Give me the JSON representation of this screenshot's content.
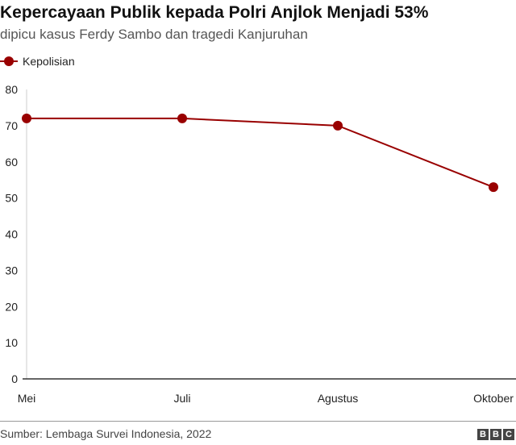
{
  "chart_data": {
    "type": "line",
    "title": "Kepercayaan Publik kepada Polri Anjlok Menjadi 53%",
    "subtitle": "dipicu kasus Ferdy Sambo dan tragedi Kanjuruhan",
    "categories": [
      "Mei",
      "Juli",
      "Agustus",
      "Oktober"
    ],
    "series": [
      {
        "name": "Kepolisian",
        "values": [
          72,
          72,
          70,
          53
        ],
        "color": "#990000"
      }
    ],
    "ylim": [
      0,
      80
    ],
    "yticks": [
      0,
      10,
      20,
      30,
      40,
      50,
      60,
      70,
      80
    ],
    "xlabel": "",
    "ylabel": "",
    "legend": "top-left",
    "grid": false
  },
  "source": "Sumber: Lembaga Survei Indonesia, 2022",
  "logo": [
    "B",
    "B",
    "C"
  ]
}
